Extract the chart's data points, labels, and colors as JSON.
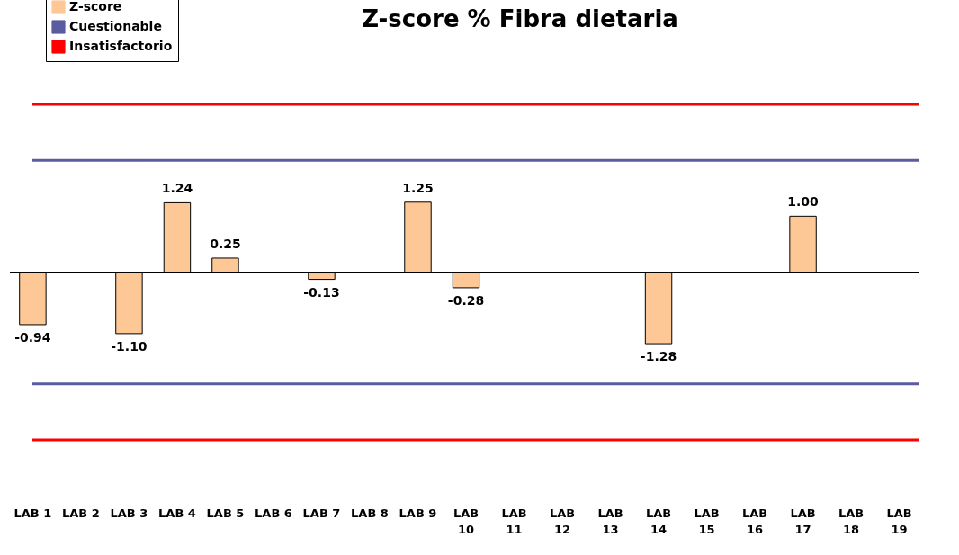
{
  "chart_data": {
    "type": "bar",
    "title": "Z-score % Fibra dietaria",
    "categories": [
      "LAB 1",
      "LAB 2",
      "LAB 3",
      "LAB 4",
      "LAB 5",
      "LAB 6",
      "LAB 7",
      "LAB 8",
      "LAB 9",
      "LAB 10",
      "LAB 11",
      "LAB 12",
      "LAB 13",
      "LAB 14",
      "LAB 15",
      "LAB 16",
      "LAB 17",
      "LAB 18",
      "LAB 19"
    ],
    "series": [
      {
        "name": "Z-score",
        "color": "#fdc896",
        "values": [
          -0.94,
          null,
          -1.1,
          1.24,
          0.25,
          null,
          -0.13,
          null,
          1.25,
          -0.28,
          null,
          null,
          null,
          -1.28,
          null,
          null,
          1.0,
          null,
          null
        ],
        "value_labels": [
          "-0.94",
          null,
          "-1.10",
          "1.24",
          "0.25",
          null,
          "-0.13",
          null,
          "1.25",
          "-0.28",
          null,
          null,
          null,
          "-1.28",
          null,
          null,
          "1.00",
          null,
          null
        ]
      }
    ],
    "ref_lines": [
      {
        "axis": "y",
        "value": 2,
        "label": "Cuestionable",
        "color": "#5b5ba0"
      },
      {
        "axis": "y",
        "value": 3,
        "label": "Insatisfactorio",
        "color": "#ff0000"
      },
      {
        "axis": "y",
        "value": -2,
        "color": "#5b5ba0"
      },
      {
        "axis": "y",
        "value": -3,
        "color": "#ff0000"
      }
    ],
    "tick_labels": "x",
    "grid": false,
    "legend": "top left"
  }
}
